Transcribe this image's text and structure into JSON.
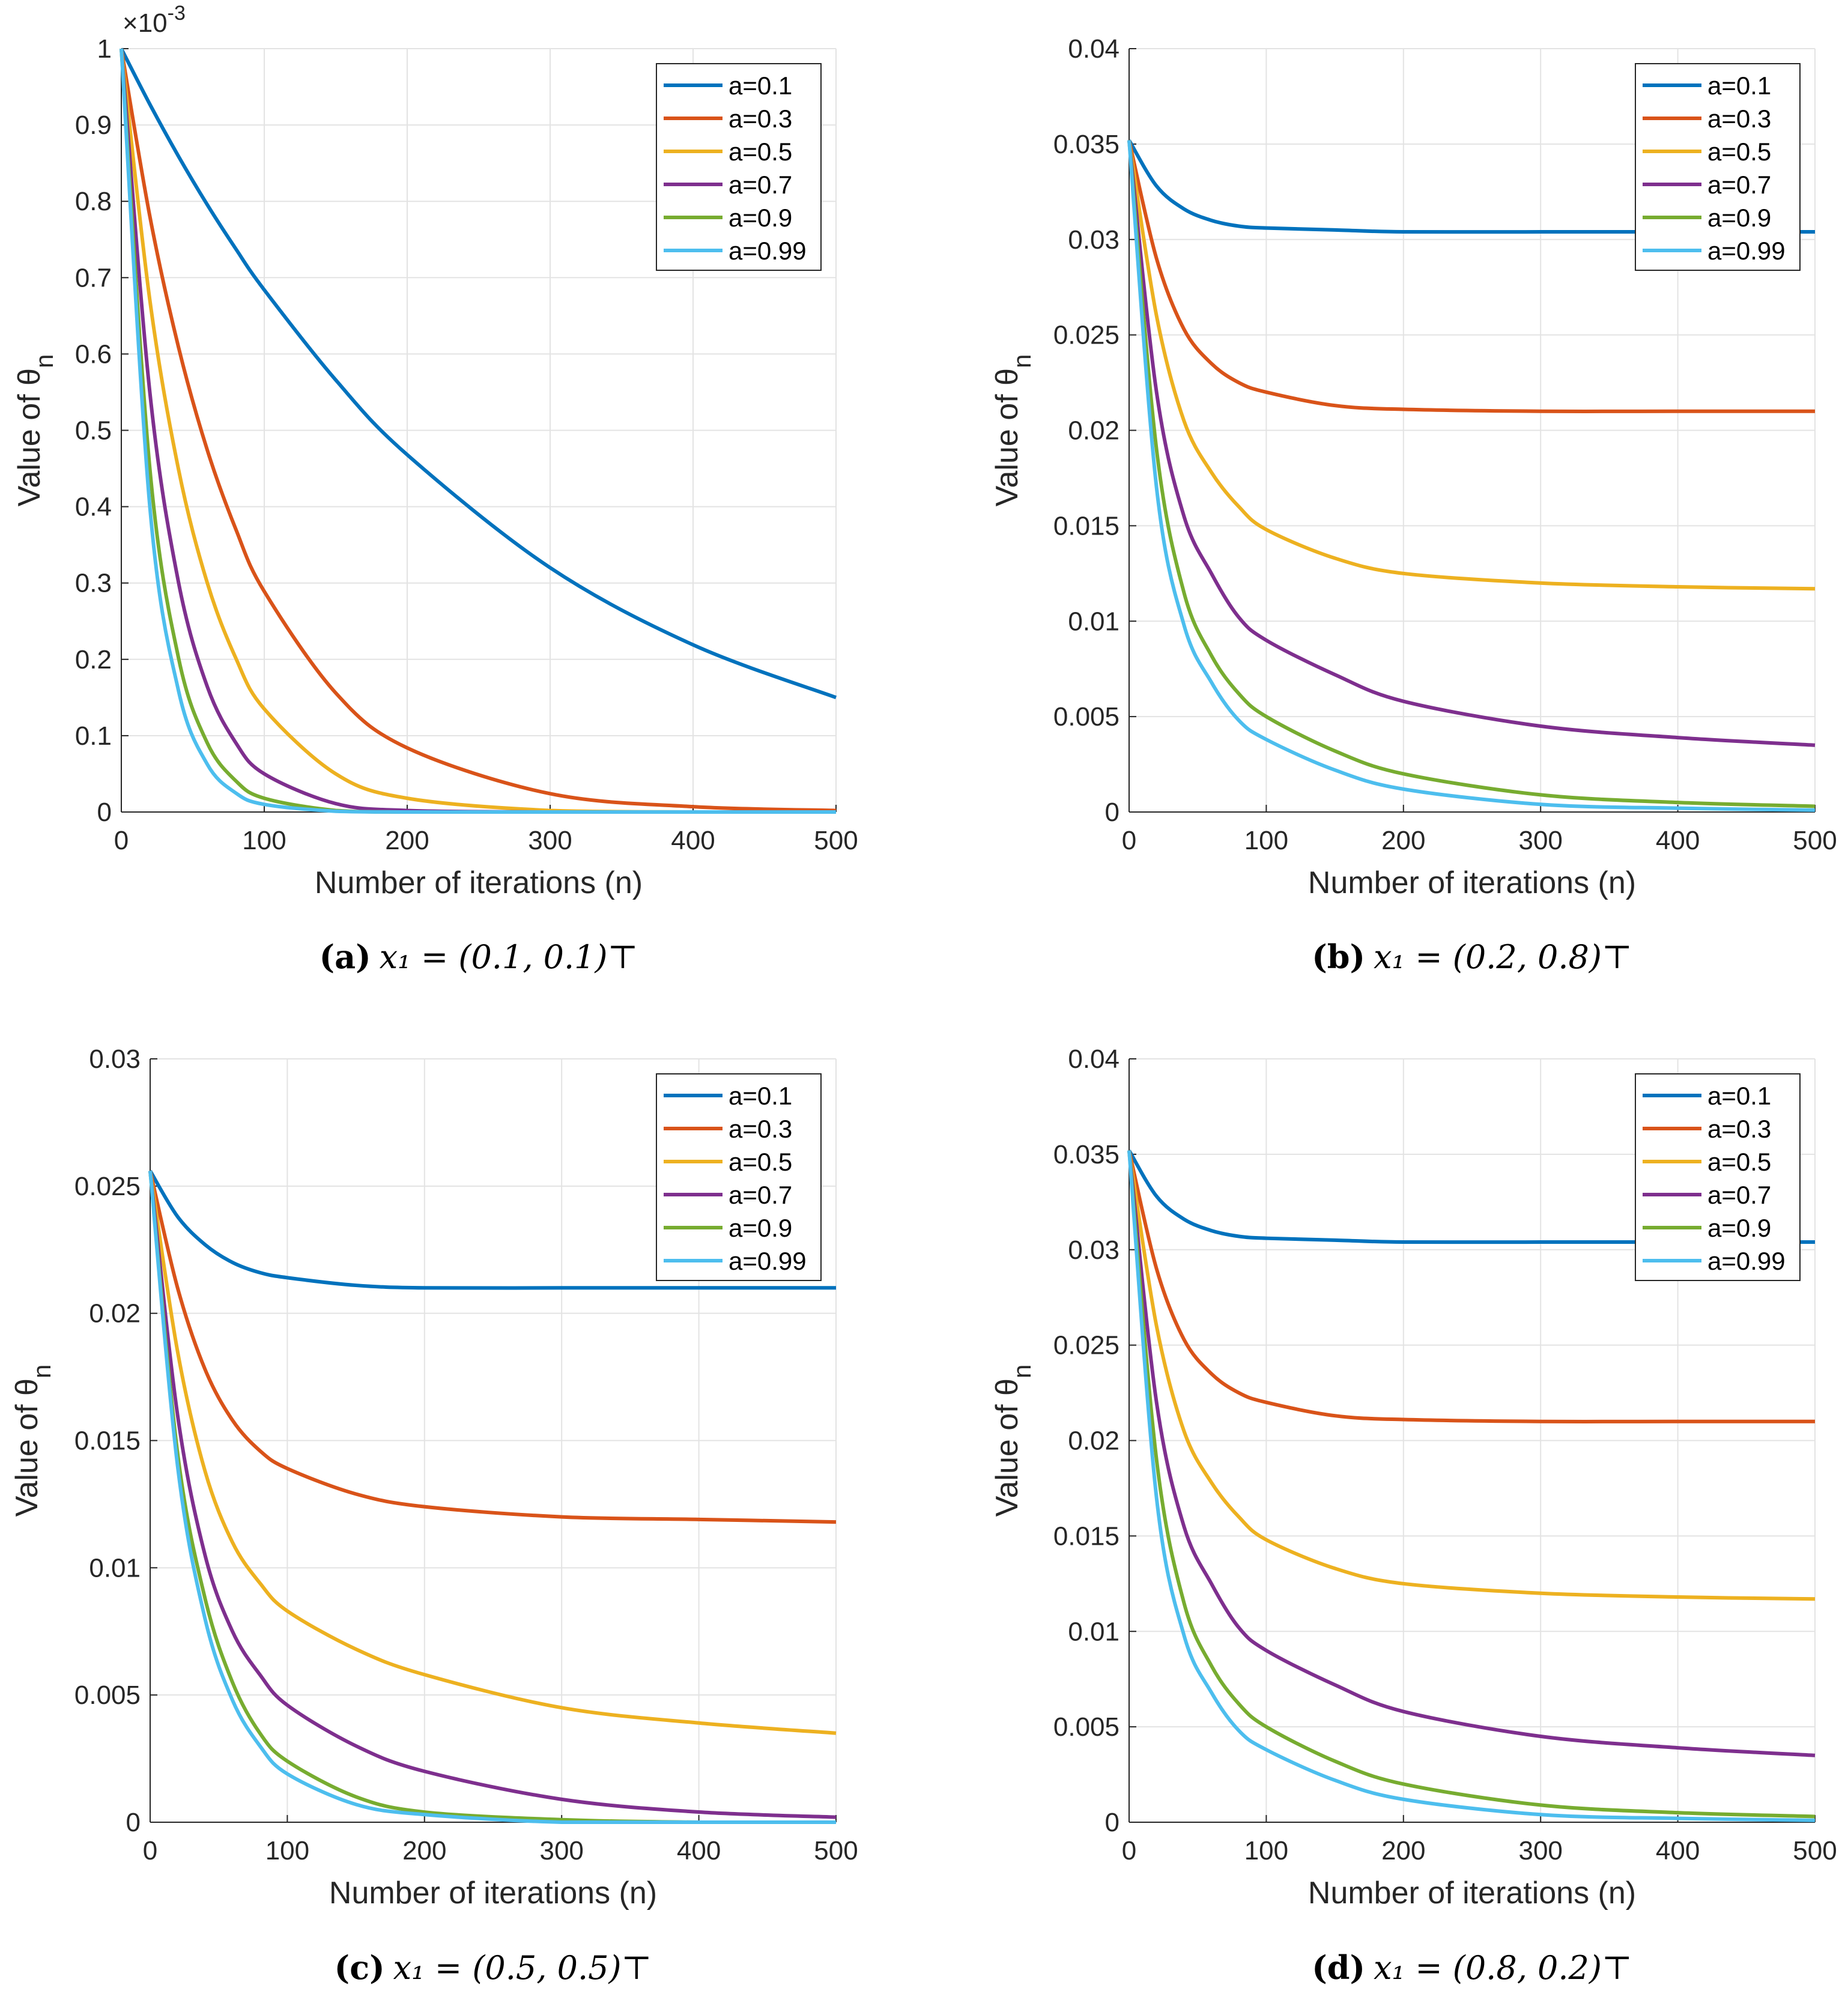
{
  "figure": {
    "captions": [
      {
        "label": "(a)",
        "text": "x₁ = (0.1, 0.1)⊤"
      },
      {
        "label": "(b)",
        "text": "x₁ = (0.2, 0.8)⊤"
      },
      {
        "label": "(c)",
        "text": "x₁ = (0.5, 0.5)⊤"
      },
      {
        "label": "(d)",
        "text": "x₁ = (0.8, 0.2)⊤"
      }
    ]
  },
  "colors": {
    "a=0.1": "#0072BD",
    "a=0.3": "#D95319",
    "a=0.5": "#EDB120",
    "a=0.7": "#7E2F8E",
    "a=0.9": "#77AC30",
    "a=0.99": "#4DBEEE"
  },
  "chart_data": [
    {
      "type": "line",
      "title": "",
      "xlabel": "Number of iterations (n)",
      "ylabel": "Value of θ",
      "ylabel_sub": "n",
      "y_multiplier": "×10",
      "y_multiplier_exp": "-3",
      "xlim": [
        0,
        500
      ],
      "ylim": [
        0,
        1
      ],
      "xticks": [
        0,
        100,
        200,
        300,
        400,
        500
      ],
      "yticks": [
        0,
        0.1,
        0.2,
        0.3,
        0.4,
        0.5,
        0.6,
        0.7,
        0.8,
        0.9,
        1
      ],
      "ytick_labels": [
        "0",
        "0.1",
        "0.2",
        "0.3",
        "0.4",
        "0.5",
        "0.6",
        "0.7",
        "0.8",
        "0.9",
        "1"
      ],
      "grid": true,
      "legend_position": "top-right",
      "x": [
        0,
        20,
        40,
        60,
        80,
        100,
        150,
        200,
        300,
        400,
        500
      ],
      "series": [
        {
          "name": "a=0.1",
          "values": [
            1,
            0.927,
            0.859,
            0.796,
            0.738,
            0.684,
            0.566,
            0.468,
            0.32,
            0.219,
            0.15
          ]
        },
        {
          "name": "a=0.3",
          "values": [
            1,
            0.78,
            0.609,
            0.475,
            0.371,
            0.289,
            0.156,
            0.084,
            0.024,
            0.007,
            0.002
          ]
        },
        {
          "name": "a=0.5",
          "values": [
            1,
            0.67,
            0.449,
            0.301,
            0.202,
            0.135,
            0.05,
            0.018,
            0.002,
            0,
            0
          ]
        },
        {
          "name": "a=0.7",
          "values": [
            1,
            0.549,
            0.301,
            0.165,
            0.091,
            0.05,
            0.011,
            0.002,
            0,
            0,
            0
          ]
        },
        {
          "name": "a=0.9",
          "values": [
            1,
            0.449,
            0.202,
            0.091,
            0.041,
            0.018,
            0.002,
            0,
            0,
            0,
            0
          ]
        },
        {
          "name": "a=0.99",
          "values": [
            1,
            0.399,
            0.159,
            0.063,
            0.025,
            0.01,
            0.001,
            0,
            0,
            0,
            0
          ]
        }
      ]
    },
    {
      "type": "line",
      "title": "",
      "xlabel": "Number of iterations (n)",
      "ylabel": "Value of θ",
      "ylabel_sub": "n",
      "xlim": [
        0,
        500
      ],
      "ylim": [
        0,
        0.04
      ],
      "xticks": [
        0,
        100,
        200,
        300,
        400,
        500
      ],
      "yticks": [
        0,
        0.005,
        0.01,
        0.015,
        0.02,
        0.025,
        0.03,
        0.035,
        0.04
      ],
      "ytick_labels": [
        "0",
        "0.005",
        "0.01",
        "0.015",
        "0.02",
        "0.025",
        "0.03",
        "0.035",
        "0.04"
      ],
      "grid": true,
      "legend_position": "top-right",
      "x": [
        0,
        20,
        40,
        60,
        80,
        100,
        150,
        200,
        300,
        400,
        500
      ],
      "series": [
        {
          "name": "a=0.1",
          "values": [
            0.0352,
            0.0328,
            0.0316,
            0.031,
            0.0307,
            0.0306,
            0.0305,
            0.0304,
            0.0304,
            0.0304,
            0.0304
          ]
        },
        {
          "name": "a=0.3",
          "values": [
            0.0352,
            0.029,
            0.0253,
            0.0235,
            0.0225,
            0.022,
            0.0213,
            0.0211,
            0.021,
            0.021,
            0.021
          ]
        },
        {
          "name": "a=0.5",
          "values": [
            0.0352,
            0.026,
            0.0205,
            0.0178,
            0.016,
            0.0148,
            0.0133,
            0.0125,
            0.012,
            0.0118,
            0.0117
          ]
        },
        {
          "name": "a=0.7",
          "values": [
            0.0352,
            0.022,
            0.0155,
            0.0125,
            0.0102,
            0.009,
            0.0072,
            0.0058,
            0.0045,
            0.0039,
            0.0035
          ]
        },
        {
          "name": "a=0.9",
          "values": [
            0.0352,
            0.019,
            0.0115,
            0.0082,
            0.0062,
            0.005,
            0.0032,
            0.002,
            0.0009,
            0.0005,
            0.0003
          ]
        },
        {
          "name": "a=0.99",
          "values": [
            0.0352,
            0.017,
            0.0098,
            0.0068,
            0.0048,
            0.0038,
            0.0022,
            0.0012,
            0.0004,
            0.0002,
            0.0001
          ]
        }
      ]
    },
    {
      "type": "line",
      "title": "",
      "xlabel": "Number of iterations (n)",
      "ylabel": "Value of θ",
      "ylabel_sub": "n",
      "xlim": [
        0,
        500
      ],
      "ylim": [
        0,
        0.03
      ],
      "xticks": [
        0,
        100,
        200,
        300,
        400,
        500
      ],
      "yticks": [
        0,
        0.005,
        0.01,
        0.015,
        0.02,
        0.025,
        0.03
      ],
      "ytick_labels": [
        "0",
        "0.005",
        "0.01",
        "0.015",
        "0.02",
        "0.025",
        "0.03"
      ],
      "grid": true,
      "legend_position": "top-right",
      "x": [
        0,
        20,
        40,
        60,
        80,
        100,
        150,
        200,
        300,
        400,
        500
      ],
      "series": [
        {
          "name": "a=0.1",
          "values": [
            0.0256,
            0.0238,
            0.0227,
            0.022,
            0.0216,
            0.0214,
            0.0211,
            0.021,
            0.021,
            0.021,
            0.021
          ]
        },
        {
          "name": "a=0.3",
          "values": [
            0.0256,
            0.021,
            0.0178,
            0.0158,
            0.0146,
            0.0139,
            0.0129,
            0.0124,
            0.012,
            0.0119,
            0.0118
          ]
        },
        {
          "name": "a=0.5",
          "values": [
            0.0256,
            0.0185,
            0.0138,
            0.011,
            0.0094,
            0.0083,
            0.0068,
            0.0058,
            0.0045,
            0.0039,
            0.0035
          ]
        },
        {
          "name": "a=0.7",
          "values": [
            0.0256,
            0.016,
            0.0105,
            0.0075,
            0.0058,
            0.0046,
            0.003,
            0.002,
            0.0009,
            0.0004,
            0.0002
          ]
        },
        {
          "name": "a=0.9",
          "values": [
            0.0256,
            0.0145,
            0.0088,
            0.0055,
            0.0035,
            0.0024,
            0.001,
            0.0004,
            0.0001,
            0,
            0
          ]
        },
        {
          "name": "a=0.99",
          "values": [
            0.0256,
            0.014,
            0.008,
            0.0048,
            0.003,
            0.0019,
            0.0007,
            0.0003,
            0,
            0,
            0
          ]
        }
      ]
    },
    {
      "type": "line",
      "title": "",
      "xlabel": "Number of iterations (n)",
      "ylabel": "Value of θ",
      "ylabel_sub": "n",
      "xlim": [
        0,
        500
      ],
      "ylim": [
        0,
        0.04
      ],
      "xticks": [
        0,
        100,
        200,
        300,
        400,
        500
      ],
      "yticks": [
        0,
        0.005,
        0.01,
        0.015,
        0.02,
        0.025,
        0.03,
        0.035,
        0.04
      ],
      "ytick_labels": [
        "0",
        "0.005",
        "0.01",
        "0.015",
        "0.02",
        "0.025",
        "0.03",
        "0.035",
        "0.04"
      ],
      "grid": true,
      "legend_position": "top-right",
      "x": [
        0,
        20,
        40,
        60,
        80,
        100,
        150,
        200,
        300,
        400,
        500
      ],
      "series": [
        {
          "name": "a=0.1",
          "values": [
            0.0352,
            0.0328,
            0.0316,
            0.031,
            0.0307,
            0.0306,
            0.0305,
            0.0304,
            0.0304,
            0.0304,
            0.0304
          ]
        },
        {
          "name": "a=0.3",
          "values": [
            0.0352,
            0.029,
            0.0253,
            0.0235,
            0.0225,
            0.022,
            0.0213,
            0.0211,
            0.021,
            0.021,
            0.021
          ]
        },
        {
          "name": "a=0.5",
          "values": [
            0.0352,
            0.026,
            0.0205,
            0.0178,
            0.016,
            0.0148,
            0.0133,
            0.0125,
            0.012,
            0.0118,
            0.0117
          ]
        },
        {
          "name": "a=0.7",
          "values": [
            0.0352,
            0.022,
            0.0155,
            0.0125,
            0.0102,
            0.009,
            0.0072,
            0.0058,
            0.0045,
            0.0039,
            0.0035
          ]
        },
        {
          "name": "a=0.9",
          "values": [
            0.0352,
            0.019,
            0.0115,
            0.0082,
            0.0062,
            0.005,
            0.0032,
            0.002,
            0.0009,
            0.0005,
            0.0003
          ]
        },
        {
          "name": "a=0.99",
          "values": [
            0.0352,
            0.017,
            0.0098,
            0.0068,
            0.0048,
            0.0038,
            0.0022,
            0.0012,
            0.0004,
            0.0002,
            0.0001
          ]
        }
      ]
    }
  ]
}
